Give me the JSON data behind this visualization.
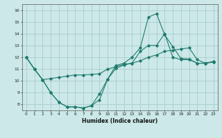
{
  "xlabel": "Humidex (Indice chaleur)",
  "background_color": "#cce8e8",
  "grid_color": "#aacccc",
  "line_color": "#1e7b6e",
  "xlim": [
    -0.5,
    23.5
  ],
  "ylim": [
    7.5,
    16.5
  ],
  "xticks": [
    0,
    1,
    2,
    3,
    4,
    5,
    6,
    7,
    8,
    9,
    10,
    11,
    12,
    13,
    14,
    15,
    16,
    17,
    18,
    19,
    20,
    21,
    22,
    23
  ],
  "yticks": [
    8,
    9,
    10,
    11,
    12,
    13,
    14,
    15,
    16
  ],
  "line1_x": [
    0,
    1,
    2,
    3,
    4,
    5,
    6,
    7,
    8,
    9,
    10,
    11,
    12,
    13,
    14,
    15,
    16,
    17,
    18,
    19,
    20,
    21,
    22,
    23
  ],
  "line1_y": [
    12,
    11,
    10.1,
    10.2,
    10.3,
    10.4,
    10.5,
    10.5,
    10.55,
    10.6,
    11.0,
    11.2,
    11.4,
    11.5,
    11.7,
    12.0,
    12.2,
    12.5,
    12.6,
    12.7,
    12.8,
    11.8,
    11.5,
    11.65
  ],
  "line2_x": [
    0,
    1,
    2,
    3,
    4,
    5,
    6,
    7,
    8,
    9,
    10,
    11,
    12,
    13,
    14,
    15,
    16,
    17,
    18,
    19,
    20,
    21,
    22,
    23
  ],
  "line2_y": [
    12,
    11,
    10.1,
    9.0,
    8.2,
    7.8,
    7.8,
    7.7,
    7.9,
    8.4,
    10.15,
    11.05,
    11.35,
    11.5,
    12.5,
    13.0,
    13.0,
    14.0,
    12.0,
    11.8,
    11.8,
    11.5,
    11.5,
    11.6
  ],
  "line3_x": [
    0,
    1,
    2,
    3,
    4,
    5,
    6,
    7,
    8,
    9,
    10,
    11,
    12,
    13,
    14,
    15,
    16,
    17,
    18,
    19,
    20,
    21,
    22,
    23
  ],
  "line3_y": [
    12,
    11,
    10.1,
    9.0,
    8.2,
    7.8,
    7.8,
    7.7,
    7.9,
    8.9,
    10.15,
    11.3,
    11.5,
    12.0,
    12.8,
    15.4,
    15.7,
    13.9,
    12.9,
    11.9,
    11.85,
    11.5,
    11.5,
    11.6
  ]
}
